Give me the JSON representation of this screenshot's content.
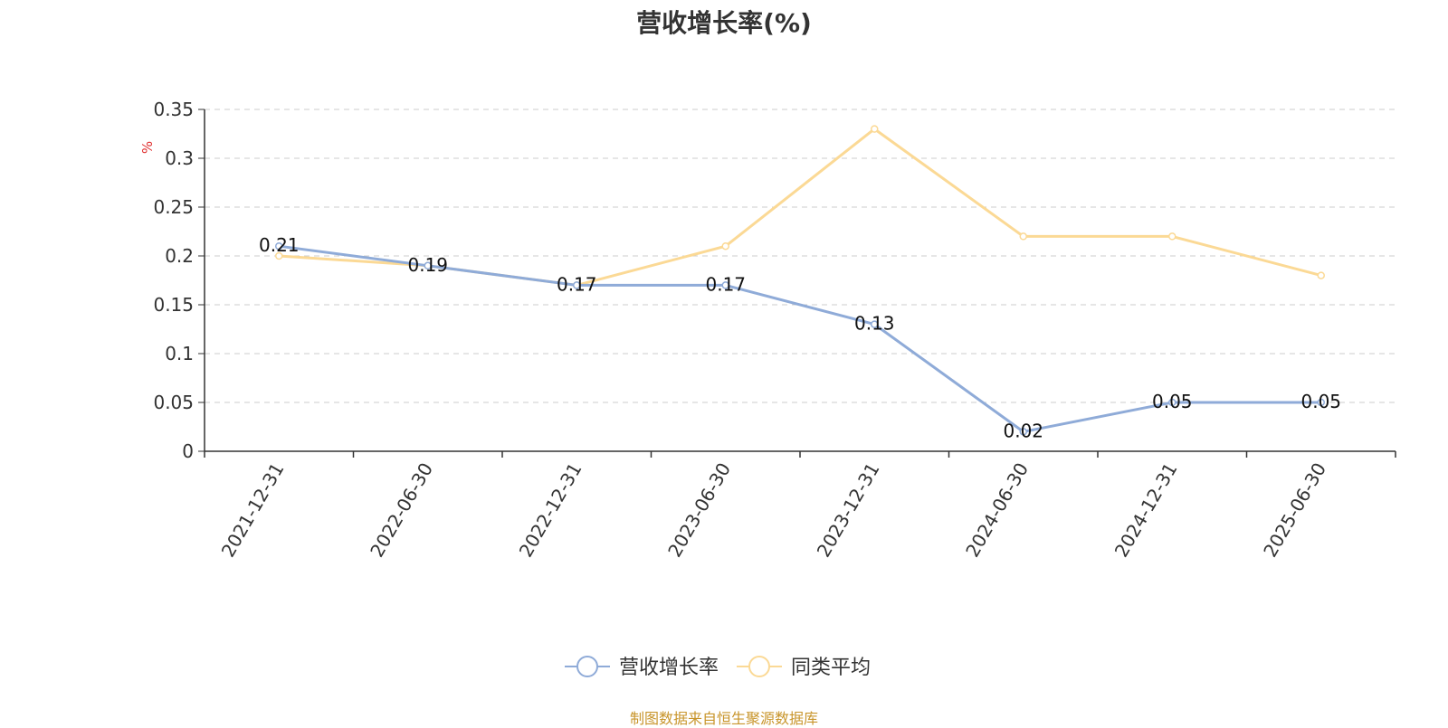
{
  "chart_data": {
    "type": "line",
    "title": "营收增长率(%)",
    "ylabel": "%",
    "xlabel": "",
    "categories": [
      "2021-12-31",
      "2022-06-30",
      "2022-12-31",
      "2023-06-30",
      "2023-12-31",
      "2024-06-30",
      "2024-12-31",
      "2025-06-30"
    ],
    "ylim": [
      0,
      0.35
    ],
    "yticks": [
      "0",
      "0.05",
      "0.1",
      "0.15",
      "0.2",
      "0.25",
      "0.3",
      "0.35"
    ],
    "grid": true,
    "legend_position": "bottom",
    "series": [
      {
        "name": "营收增长率",
        "color": "#8fabd8",
        "values": [
          0.21,
          0.19,
          0.17,
          0.17,
          0.13,
          0.02,
          0.05,
          0.05
        ],
        "labels": [
          "0.21",
          "0.19",
          "0.17",
          "0.17",
          "0.13",
          "0.02",
          "0.05",
          "0.05"
        ]
      },
      {
        "name": "同类平均",
        "color": "#fbd995",
        "values": [
          0.2,
          0.19,
          0.17,
          0.21,
          0.33,
          0.22,
          0.22,
          0.18
        ]
      }
    ]
  },
  "source_note": "制图数据来自恒生聚源数据库"
}
